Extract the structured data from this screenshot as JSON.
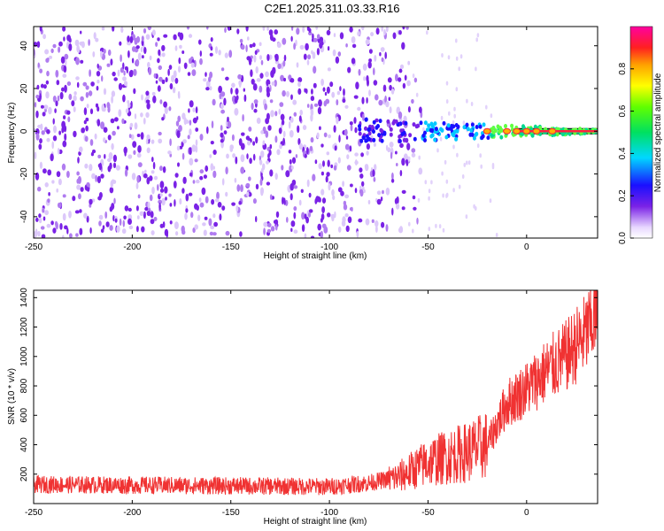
{
  "title": "C2E1.2025.311.03.33.R16",
  "colors": {
    "snr_line": "#f03232",
    "spectrum_dots": "#7a22e6",
    "ridge_core": "#ff2040"
  },
  "chart_data": [
    {
      "type": "heatmap",
      "name": "spectrogram",
      "xlabel": "Height of straight line (km)",
      "ylabel": "Frequency (Hz)",
      "xlim": [
        -250,
        36
      ],
      "ylim": [
        -50,
        49
      ],
      "xticks": [
        -250,
        -200,
        -150,
        -100,
        -50,
        0
      ],
      "yticks": [
        -40,
        -20,
        0,
        20,
        40
      ],
      "colorbar": {
        "label": "Normalized spectral amplitude",
        "range": [
          0,
          1
        ],
        "ticks": [
          "0.0",
          "0.2",
          "0.4",
          "0.6",
          "0.8"
        ],
        "tick_values": [
          0.0,
          0.2,
          0.4,
          0.6,
          0.8
        ]
      },
      "noise_region_x": [
        -250,
        -62
      ],
      "ridge": {
        "x_start": -85,
        "x_end": 36,
        "frequency_hz": 0,
        "peak_x": [
          -20,
          -10,
          -5,
          0,
          5,
          13
        ]
      }
    },
    {
      "type": "line",
      "name": "snr",
      "xlabel": "Height of straight line (km)",
      "ylabel": "SNR (10 * v/v)",
      "xlim": [
        -250,
        36
      ],
      "ylim": [
        0,
        1450
      ],
      "xticks": [
        -250,
        -200,
        -150,
        -100,
        -50,
        0
      ],
      "yticks": [
        200,
        400,
        600,
        800,
        1000,
        1200,
        1400
      ],
      "series": [
        {
          "name": "SNR",
          "x": [
            -250,
            -200,
            -150,
            -100,
            -80,
            -65,
            -50,
            -40,
            -30,
            -20,
            -10,
            0,
            10,
            20,
            30,
            36
          ],
          "y": [
            130,
            125,
            120,
            115,
            140,
            180,
            280,
            320,
            350,
            400,
            680,
            780,
            900,
            1000,
            1150,
            1300
          ]
        }
      ]
    }
  ]
}
